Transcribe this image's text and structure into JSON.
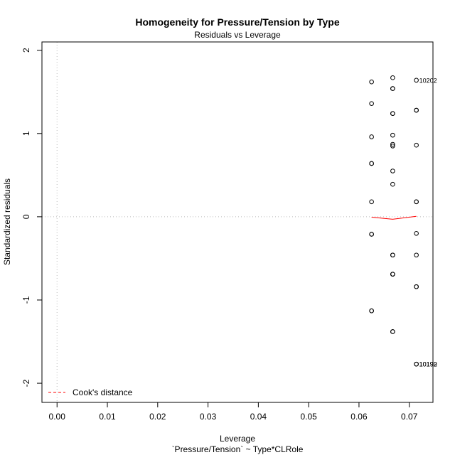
{
  "chart_data": {
    "type": "scatter",
    "title": "Homogeneity for Pressure/Tension by Type",
    "subtitle": "Residuals vs Leverage",
    "xlabel": "Leverage",
    "xlabel2": "`Pressure/Tension` ~ Type*CLRole",
    "ylabel": "Standardized residuals",
    "xlim": [
      -0.003,
      0.0747
    ],
    "ylim": [
      -2.23,
      2.1
    ],
    "x_ticks": [
      {
        "value": 0.0,
        "label": "0.00"
      },
      {
        "value": 0.01,
        "label": "0.01"
      },
      {
        "value": 0.02,
        "label": "0.02"
      },
      {
        "value": 0.03,
        "label": "0.03"
      },
      {
        "value": 0.04,
        "label": "0.04"
      },
      {
        "value": 0.05,
        "label": "0.05"
      },
      {
        "value": 0.06,
        "label": "0.06"
      },
      {
        "value": 0.07,
        "label": "0.07"
      }
    ],
    "y_ticks": [
      {
        "value": -2,
        "label": "-2"
      },
      {
        "value": -1,
        "label": "-1"
      },
      {
        "value": 0,
        "label": "0"
      },
      {
        "value": 1,
        "label": "1"
      },
      {
        "value": 2,
        "label": "2"
      }
    ],
    "grid": false,
    "reference_lines": {
      "x": 0,
      "y": 0,
      "style": "dotted",
      "color": "#bbbbbb"
    },
    "points": [
      {
        "x": 0.0625,
        "y": 1.62
      },
      {
        "x": 0.0625,
        "y": 1.36
      },
      {
        "x": 0.0625,
        "y": 0.96
      },
      {
        "x": 0.0625,
        "y": 0.64
      },
      {
        "x": 0.0625,
        "y": 0.64
      },
      {
        "x": 0.0625,
        "y": 0.18
      },
      {
        "x": 0.0625,
        "y": -0.21
      },
      {
        "x": 0.0625,
        "y": -0.21
      },
      {
        "x": 0.0625,
        "y": -1.13
      },
      {
        "x": 0.0625,
        "y": -1.13
      },
      {
        "x": 0.0667,
        "y": 1.67
      },
      {
        "x": 0.0667,
        "y": 1.54
      },
      {
        "x": 0.0667,
        "y": 1.54
      },
      {
        "x": 0.0667,
        "y": 1.24
      },
      {
        "x": 0.0667,
        "y": 1.24
      },
      {
        "x": 0.0667,
        "y": 0.98
      },
      {
        "x": 0.0667,
        "y": 0.87
      },
      {
        "x": 0.0667,
        "y": 0.85
      },
      {
        "x": 0.0667,
        "y": 0.55
      },
      {
        "x": 0.0667,
        "y": 0.39
      },
      {
        "x": 0.0667,
        "y": -0.46
      },
      {
        "x": 0.0667,
        "y": -0.46
      },
      {
        "x": 0.0667,
        "y": -0.69
      },
      {
        "x": 0.0667,
        "y": -0.69
      },
      {
        "x": 0.0667,
        "y": -0.69
      },
      {
        "x": 0.0667,
        "y": -1.38
      },
      {
        "x": 0.0667,
        "y": -1.38
      },
      {
        "x": 0.0714,
        "y": 1.64
      },
      {
        "x": 0.0714,
        "y": 1.28
      },
      {
        "x": 0.0714,
        "y": 1.28
      },
      {
        "x": 0.0714,
        "y": 0.86
      },
      {
        "x": 0.0714,
        "y": 0.18
      },
      {
        "x": 0.0714,
        "y": 0.18
      },
      {
        "x": 0.0714,
        "y": -0.2
      },
      {
        "x": 0.0714,
        "y": -0.46
      },
      {
        "x": 0.0714,
        "y": -0.84
      },
      {
        "x": 0.0714,
        "y": -0.84
      },
      {
        "x": 0.0714,
        "y": -1.77
      },
      {
        "x": 0.0714,
        "y": -1.77
      }
    ],
    "point_labels": [
      {
        "x": 0.0714,
        "y": 1.64,
        "label": "10202"
      },
      {
        "x": 0.0714,
        "y": -1.77,
        "label": "10190"
      },
      {
        "x": 0.0714,
        "y": -1.77,
        "label": "10192"
      }
    ],
    "smooth_line": {
      "color": "#ff0000",
      "x": [
        0.0625,
        0.0667,
        0.0714
      ],
      "y": [
        -0.005,
        -0.03,
        0.005
      ]
    },
    "legend": {
      "position": "bottom-left",
      "entries": [
        {
          "label": "Cook's distance",
          "color": "#ff0000",
          "style": "dashed"
        }
      ]
    }
  }
}
